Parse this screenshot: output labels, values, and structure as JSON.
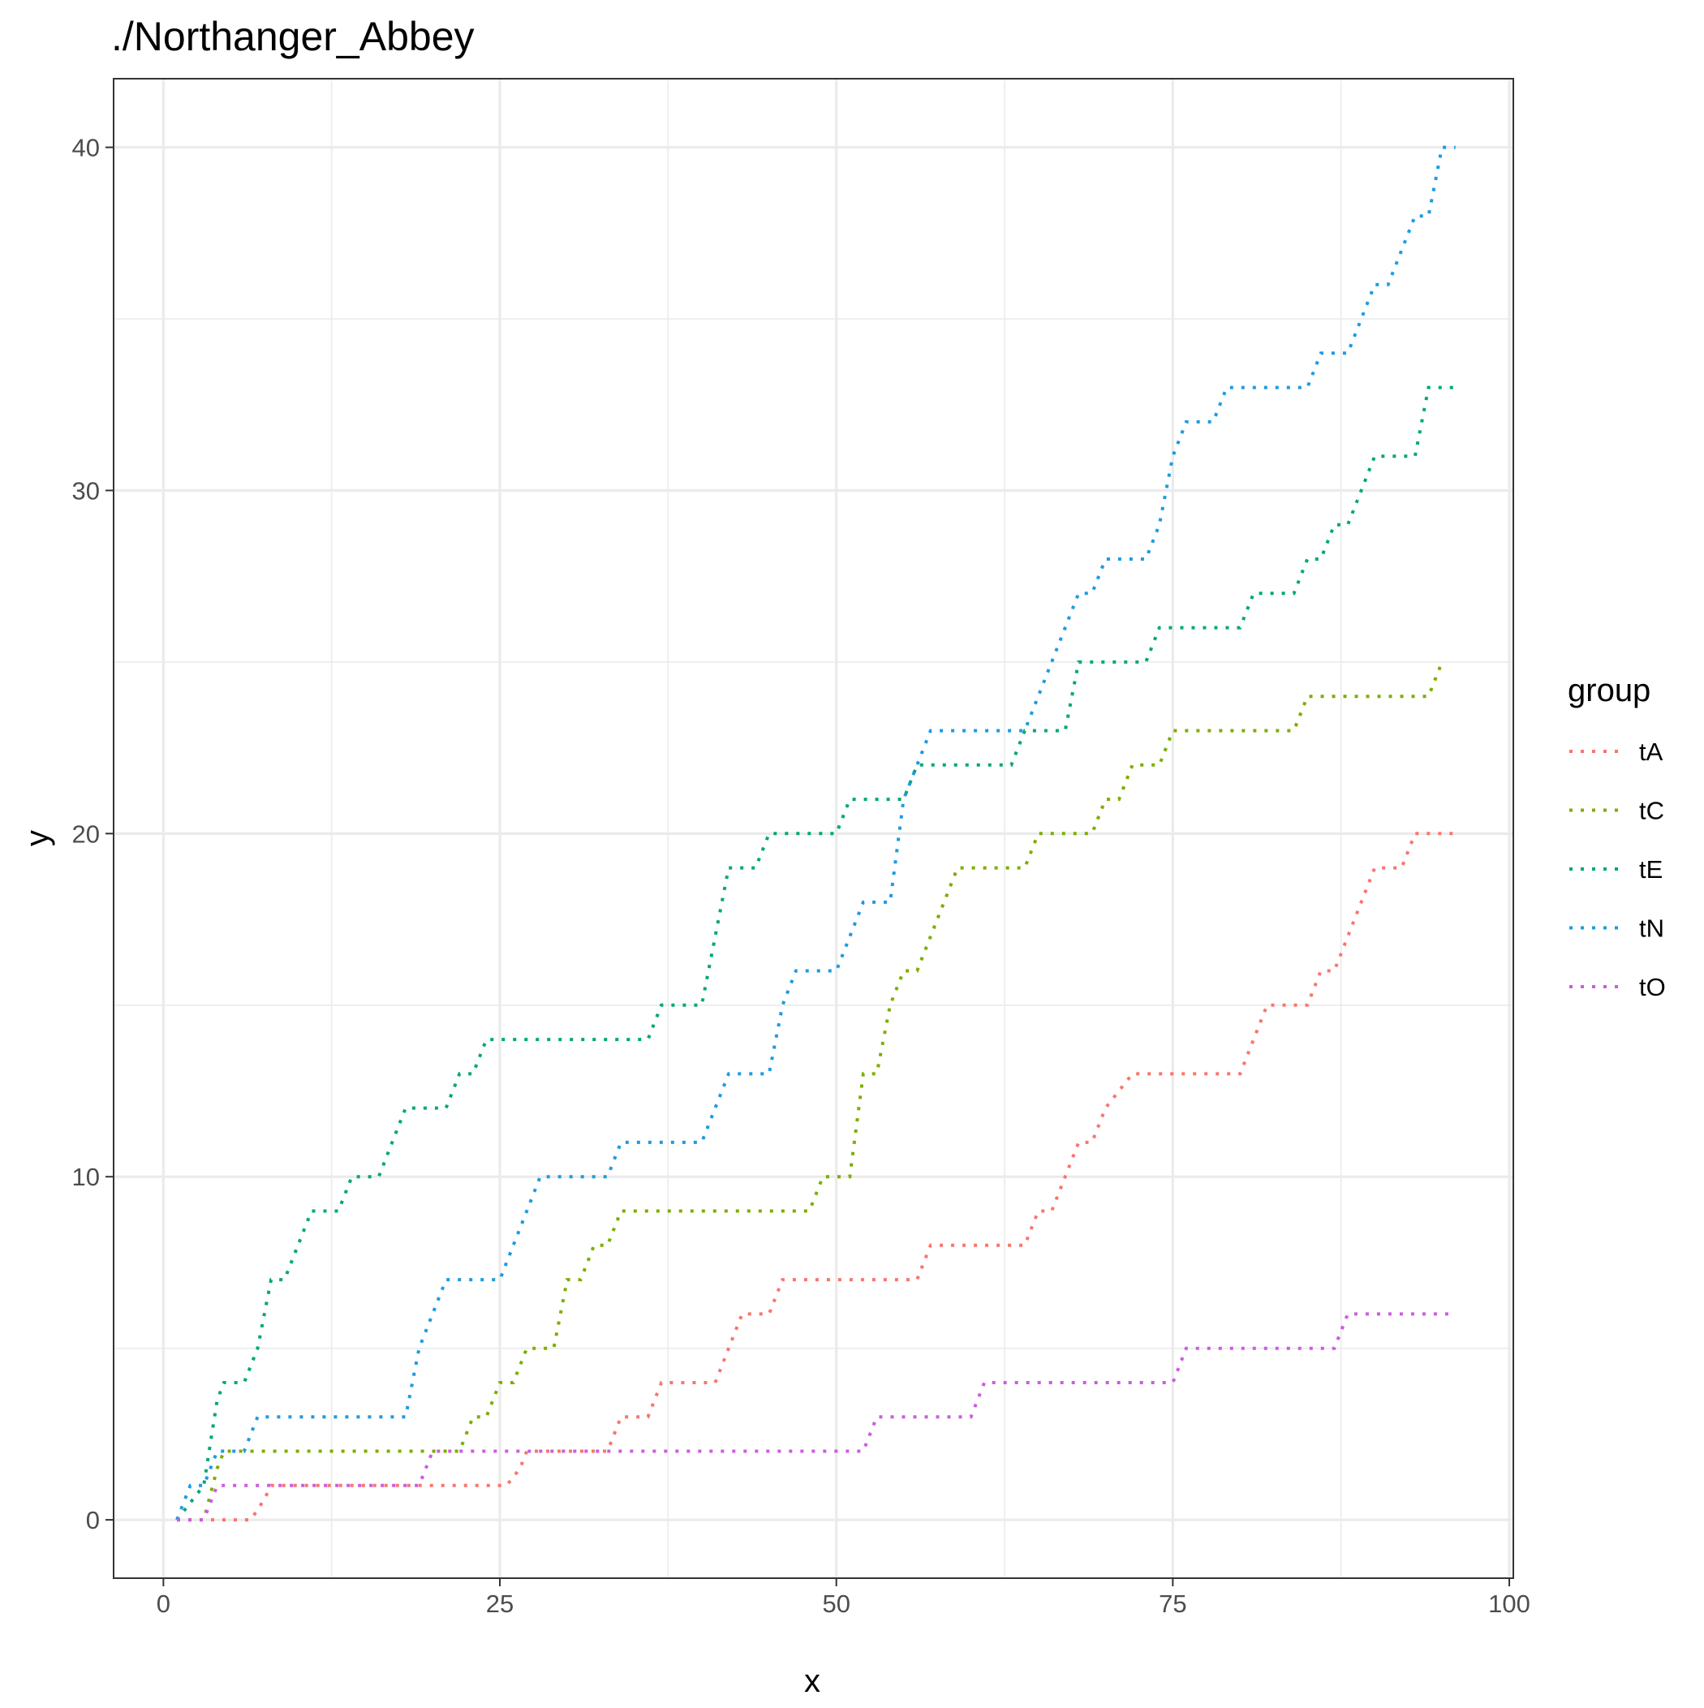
{
  "chart_data": {
    "type": "line",
    "title": "./Northanger_Abbey",
    "xlabel": "x",
    "ylabel": "y",
    "xlim": [
      -3.7,
      100.3
    ],
    "ylim": [
      -1.7,
      42
    ],
    "x_ticks": [
      0,
      25,
      50,
      75,
      100
    ],
    "x_tick_labels": [
      "0",
      "25",
      "50",
      "75",
      "100"
    ],
    "y_ticks": [
      0,
      10,
      20,
      30,
      40
    ],
    "y_tick_labels": [
      "0",
      "10",
      "20",
      "30",
      "40"
    ],
    "x_minor_ticks": [
      12.5,
      37.5,
      62.5,
      87.5
    ],
    "y_minor_ticks": [
      5,
      15,
      25,
      35
    ],
    "grid": true,
    "line_style": "dotted",
    "legend": {
      "title": "group",
      "position": "right"
    },
    "series": [
      {
        "name": "tA",
        "color": "#F8766D",
        "points": [
          [
            1,
            0
          ],
          [
            6.5,
            0
          ],
          [
            7.5,
            0.6
          ],
          [
            8,
            1
          ],
          [
            25.5,
            1
          ],
          [
            26.5,
            1.5
          ],
          [
            27,
            2
          ],
          [
            33,
            2
          ],
          [
            34,
            3
          ],
          [
            36,
            3
          ],
          [
            37,
            4
          ],
          [
            41,
            4
          ],
          [
            42,
            5
          ],
          [
            43,
            6
          ],
          [
            45,
            6
          ],
          [
            46,
            7
          ],
          [
            56,
            7
          ],
          [
            57,
            8
          ],
          [
            64,
            8
          ],
          [
            65,
            9
          ],
          [
            66,
            9
          ],
          [
            67,
            10
          ],
          [
            68,
            11
          ],
          [
            69,
            11
          ],
          [
            70,
            12
          ],
          [
            72,
            13
          ],
          [
            80,
            13
          ],
          [
            81,
            14
          ],
          [
            82,
            15
          ],
          [
            85,
            15
          ],
          [
            86,
            16
          ],
          [
            87,
            16
          ],
          [
            88,
            17
          ],
          [
            89,
            18
          ],
          [
            90,
            19
          ],
          [
            92,
            19
          ],
          [
            93,
            20
          ],
          [
            96,
            20
          ]
        ]
      },
      {
        "name": "tC",
        "color": "#7CAE00",
        "points": [
          [
            1,
            0
          ],
          [
            3,
            0
          ],
          [
            4,
            1.5
          ],
          [
            4.5,
            2
          ],
          [
            22,
            2
          ],
          [
            23,
            3
          ],
          [
            24,
            3
          ],
          [
            25,
            4
          ],
          [
            26,
            4
          ],
          [
            27,
            5
          ],
          [
            29,
            5
          ],
          [
            30,
            7
          ],
          [
            31,
            7
          ],
          [
            32,
            8
          ],
          [
            33,
            8
          ],
          [
            34,
            9
          ],
          [
            48,
            9
          ],
          [
            49,
            10
          ],
          [
            51,
            10
          ],
          [
            52,
            13
          ],
          [
            53,
            13
          ],
          [
            54,
            15
          ],
          [
            55,
            16
          ],
          [
            56,
            16
          ],
          [
            57,
            17
          ],
          [
            58,
            18
          ],
          [
            59,
            19
          ],
          [
            64,
            19
          ],
          [
            65,
            20
          ],
          [
            69,
            20
          ],
          [
            70,
            21
          ],
          [
            71,
            21
          ],
          [
            72,
            22
          ],
          [
            74,
            22
          ],
          [
            75,
            23
          ],
          [
            84,
            23
          ],
          [
            85,
            24
          ],
          [
            94,
            24
          ],
          [
            95,
            25
          ]
        ]
      },
      {
        "name": "tE",
        "color": "#00BFC4",
        "display_color": "#00A876",
        "points": [
          [
            1,
            0
          ],
          [
            3,
            1
          ],
          [
            4,
            3.5
          ],
          [
            4.5,
            4
          ],
          [
            6,
            4
          ],
          [
            7,
            5
          ],
          [
            8,
            7
          ],
          [
            9,
            7
          ],
          [
            10,
            8
          ],
          [
            11,
            9
          ],
          [
            13,
            9
          ],
          [
            14,
            10
          ],
          [
            16,
            10
          ],
          [
            17,
            11
          ],
          [
            18,
            12
          ],
          [
            21,
            12
          ],
          [
            22,
            13
          ],
          [
            23,
            13
          ],
          [
            24,
            14
          ],
          [
            36,
            14
          ],
          [
            37,
            15
          ],
          [
            40,
            15
          ],
          [
            41,
            17
          ],
          [
            42,
            19
          ],
          [
            44,
            19
          ],
          [
            45,
            20
          ],
          [
            50,
            20
          ],
          [
            51,
            21
          ],
          [
            55,
            21
          ],
          [
            56,
            22
          ],
          [
            63,
            22
          ],
          [
            64,
            23
          ],
          [
            67,
            23
          ],
          [
            68,
            25
          ],
          [
            73,
            25
          ],
          [
            74,
            26
          ],
          [
            80,
            26
          ],
          [
            81,
            27
          ],
          [
            84,
            27
          ],
          [
            85,
            28
          ],
          [
            86,
            28
          ],
          [
            87,
            29
          ],
          [
            88,
            29
          ],
          [
            89,
            30
          ],
          [
            90,
            31
          ],
          [
            93,
            31
          ],
          [
            94,
            33
          ],
          [
            96,
            33
          ]
        ]
      },
      {
        "name": "tN",
        "color": "#00A9FF",
        "display_color": "#1E9BE0",
        "points": [
          [
            1,
            0
          ],
          [
            2,
            1
          ],
          [
            3,
            1
          ],
          [
            4,
            2
          ],
          [
            6,
            2
          ],
          [
            7,
            3
          ],
          [
            18,
            3
          ],
          [
            19,
            5
          ],
          [
            20,
            6
          ],
          [
            21,
            7
          ],
          [
            25,
            7
          ],
          [
            26,
            8
          ],
          [
            27,
            9
          ],
          [
            28,
            10
          ],
          [
            33,
            10
          ],
          [
            34,
            11
          ],
          [
            40,
            11
          ],
          [
            41,
            12
          ],
          [
            42,
            13
          ],
          [
            45,
            13
          ],
          [
            46,
            15
          ],
          [
            47,
            16
          ],
          [
            50,
            16
          ],
          [
            51,
            17
          ],
          [
            52,
            18
          ],
          [
            54,
            18
          ],
          [
            55,
            21
          ],
          [
            56,
            22
          ],
          [
            57,
            23
          ],
          [
            64,
            23
          ],
          [
            65,
            24
          ],
          [
            66,
            25
          ],
          [
            67,
            26
          ],
          [
            68,
            27
          ],
          [
            69,
            27
          ],
          [
            70,
            28
          ],
          [
            73,
            28
          ],
          [
            74,
            29
          ],
          [
            75,
            31
          ],
          [
            76,
            32
          ],
          [
            78,
            32
          ],
          [
            79,
            33
          ],
          [
            85,
            33
          ],
          [
            86,
            34
          ],
          [
            88,
            34
          ],
          [
            89,
            35
          ],
          [
            90,
            36
          ],
          [
            91,
            36
          ],
          [
            92,
            37
          ],
          [
            93,
            38
          ],
          [
            94,
            38
          ],
          [
            95,
            40
          ],
          [
            96,
            40
          ]
        ]
      },
      {
        "name": "tO",
        "color": "#E76BF3",
        "display_color": "#CC5CE0",
        "points": [
          [
            1,
            0
          ],
          [
            3,
            0
          ],
          [
            4,
            1
          ],
          [
            19,
            1
          ],
          [
            20,
            2
          ],
          [
            52,
            2
          ],
          [
            53,
            3
          ],
          [
            60,
            3
          ],
          [
            61,
            4
          ],
          [
            75,
            4
          ],
          [
            76,
            5
          ],
          [
            87,
            5
          ],
          [
            88,
            6
          ],
          [
            96,
            6
          ]
        ]
      }
    ]
  }
}
